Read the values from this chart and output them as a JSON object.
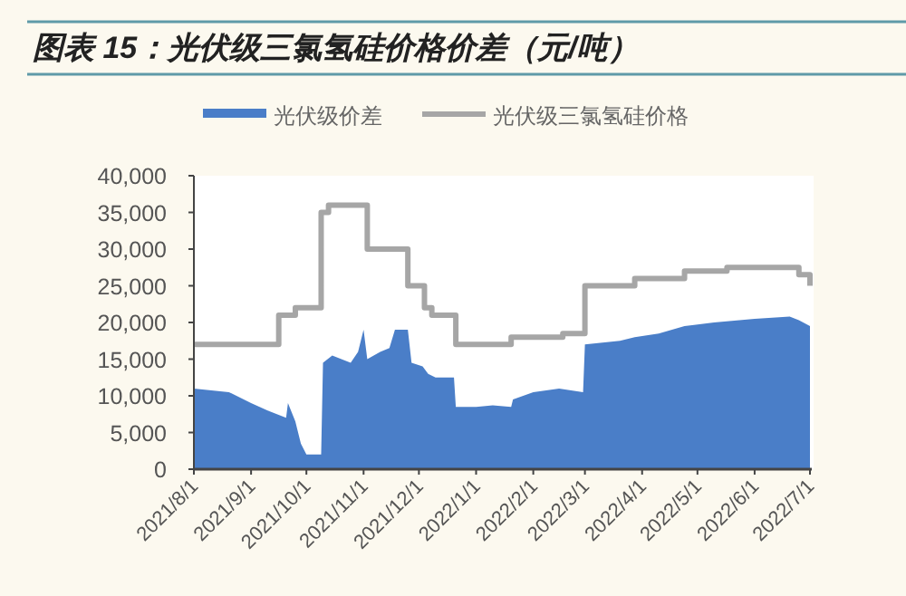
{
  "chart_data": {
    "type": "area",
    "title": "图表 15：光伏级三氯氢硅价格价差（元/吨）",
    "legend": "top",
    "xlim": [
      "2021-08-01",
      "2022-07-01"
    ],
    "xticks": [
      {
        "value": "2021-08-01",
        "label": "2021/8/1"
      },
      {
        "value": "2021-09-01",
        "label": "2021/9/1"
      },
      {
        "value": "2021-10-01",
        "label": "2021/10/1"
      },
      {
        "value": "2021-11-01",
        "label": "2021/11/1"
      },
      {
        "value": "2021-12-01",
        "label": "2021/12/1"
      },
      {
        "value": "2022-01-01",
        "label": "2022/1/1"
      },
      {
        "value": "2022-02-01",
        "label": "2022/2/1"
      },
      {
        "value": "2022-03-01",
        "label": "2022/3/1"
      },
      {
        "value": "2022-04-01",
        "label": "2022/4/1"
      },
      {
        "value": "2022-05-01",
        "label": "2022/5/1"
      },
      {
        "value": "2022-06-01",
        "label": "2022/6/1"
      },
      {
        "value": "2022-07-01",
        "label": "2022/7/1"
      }
    ],
    "ylim": [
      0,
      40000
    ],
    "yticks": [
      0,
      {
        "value": 5000,
        "label": "5,000"
      },
      {
        "value": 10000,
        "label": "10,000"
      },
      {
        "value": 15000,
        "label": "15,000"
      },
      {
        "value": 20000,
        "label": "20,000"
      },
      {
        "value": 25000,
        "label": "25,000"
      },
      {
        "value": 30000,
        "label": "30,000"
      },
      {
        "value": 35000,
        "label": "35,000"
      },
      {
        "value": 40000,
        "label": "40,000"
      }
    ],
    "series": [
      {
        "name": "光伏级价差",
        "color": "#4a7ec8",
        "x": [
          "2021-08-01",
          "2021-08-20",
          "2021-09-01",
          "2021-09-10",
          "2021-09-20",
          "2021-09-21",
          "2021-09-25",
          "2021-09-28",
          "2021-10-01",
          "2021-10-09",
          "2021-10-10",
          "2021-10-15",
          "2021-10-25",
          "2021-10-29",
          "2021-11-01",
          "2021-11-03",
          "2021-11-10",
          "2021-11-15",
          "2021-11-18",
          "2021-11-25",
          "2021-11-27",
          "2021-12-03",
          "2021-12-06",
          "2021-12-10",
          "2021-12-20",
          "2021-12-21",
          "2022-01-01",
          "2022-01-10",
          "2022-01-20",
          "2022-01-21",
          "2022-02-01",
          "2022-02-15",
          "2022-02-28",
          "2022-03-01",
          "2022-03-20",
          "2022-03-28",
          "2022-04-10",
          "2022-04-24",
          "2022-05-10",
          "2022-06-01",
          "2022-06-20",
          "2022-06-25",
          "2022-07-01"
        ],
        "values": [
          11000,
          10500,
          9000,
          8000,
          7000,
          9000,
          6500,
          3500,
          2000,
          2000,
          14500,
          15500,
          14500,
          16000,
          19000,
          15000,
          16000,
          16500,
          19000,
          19000,
          14500,
          14000,
          13000,
          12500,
          12500,
          8500,
          8500,
          8700,
          8500,
          9500,
          10500,
          11000,
          10500,
          17000,
          17500,
          18000,
          18500,
          19500,
          20000,
          20500,
          20800,
          20300,
          19500
        ]
      },
      {
        "name": "光伏级三氯氢硅价格",
        "type": "step",
        "color": "#a6a6a6",
        "x": [
          "2021-08-01",
          "2021-09-16",
          "2021-09-25",
          "2021-10-09",
          "2021-10-13",
          "2021-11-03",
          "2021-11-25",
          "2021-12-04",
          "2021-12-08",
          "2021-12-21",
          "2022-01-20",
          "2022-02-17",
          "2022-03-01",
          "2022-03-28",
          "2022-04-24",
          "2022-05-17",
          "2022-06-20",
          "2022-06-25",
          "2022-07-01"
        ],
        "values": [
          17000,
          21000,
          22000,
          35000,
          36000,
          30000,
          25000,
          22000,
          21000,
          17000,
          18000,
          18500,
          25000,
          26000,
          27000,
          27500,
          27500,
          26500,
          25000
        ]
      }
    ]
  }
}
